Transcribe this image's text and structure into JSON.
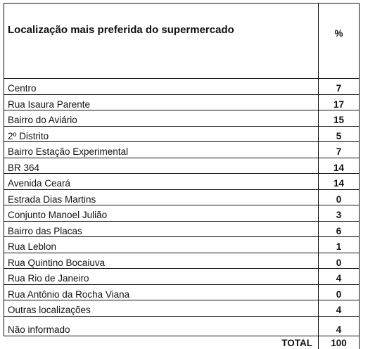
{
  "header": {
    "title": "Localização mais preferida do supermercado",
    "pct": "%"
  },
  "rows": [
    {
      "label": "Centro",
      "value": "7"
    },
    {
      "label": "Rua Isaura Parente",
      "value": "17"
    },
    {
      "label": "Bairro do Aviário",
      "value": "15"
    },
    {
      "label": "2º Distrito",
      "value": "5"
    },
    {
      "label": "Bairro Estação Experimental",
      "value": "7"
    },
    {
      "label": "BR 364",
      "value": "14"
    },
    {
      "label": "Avenida Ceará",
      "value": "14"
    },
    {
      "label": "Estrada Dias Martins",
      "value": "0"
    },
    {
      "label": "Conjunto Manoel Julião",
      "value": "3"
    },
    {
      "label": "Bairro das Placas",
      "value": "6"
    },
    {
      "label": "Rua Leblon",
      "value": "1"
    },
    {
      "label": "Rua Quintino Bocaiuva",
      "value": "0"
    },
    {
      "label": "Rua Rio de Janeiro",
      "value": "4"
    },
    {
      "label": "Rua Antônio da Rocha Viana",
      "value": "0"
    },
    {
      "label": "Outras localizações",
      "value": "4"
    },
    {
      "label": "Não informado",
      "value": "4"
    }
  ],
  "total": {
    "label": "TOTAL",
    "value": "100"
  }
}
